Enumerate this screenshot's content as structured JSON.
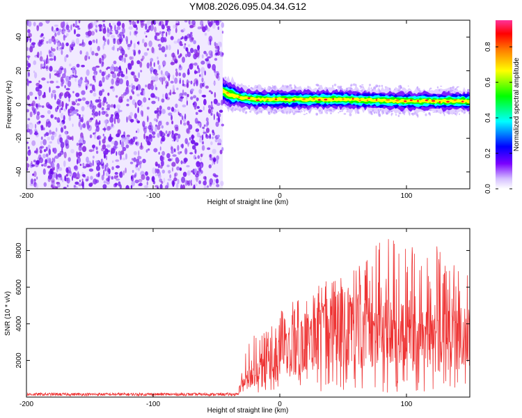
{
  "title": "YM08.2026.095.04.34.G12",
  "chart_data": [
    {
      "type": "heatmap",
      "name": "spectrogram",
      "xlabel": "Height of straight line (km)",
      "ylabel": "Frequency (Hz)",
      "xlim": [
        -200,
        150
      ],
      "ylim": [
        -50,
        50
      ],
      "x_ticks": [
        -200,
        -100,
        0,
        100
      ],
      "y_ticks": [
        -40,
        -20,
        0,
        20,
        40
      ],
      "noise_region_x": [
        -200,
        -45
      ],
      "signal_onset_x": -45,
      "signal_track": {
        "x": [
          -45,
          -40,
          -30,
          -20,
          0,
          50,
          100,
          150
        ],
        "freq": [
          8,
          6,
          4,
          3,
          3,
          3,
          2,
          2
        ]
      },
      "colorbar": {
        "label": "Normalized spectral amplitude",
        "range": [
          0,
          0.95
        ],
        "ticks": [
          0.0,
          0.2,
          0.4,
          0.6,
          0.8
        ],
        "tick_labels": [
          "0.0",
          "0.2",
          "0.4",
          "0.6",
          "0.8"
        ],
        "colors": [
          "#ffffff",
          "#b48cff",
          "#7a00ff",
          "#0000ff",
          "#00ffff",
          "#00ff00",
          "#ffff00",
          "#ff8000",
          "#ff0000",
          "#ff3399"
        ]
      }
    },
    {
      "type": "line",
      "name": "snr",
      "xlabel": "Height of straight line (km)",
      "ylabel": "SNR (10 * v/v)",
      "xlim": [
        -200,
        150
      ],
      "ylim": [
        0,
        9200
      ],
      "x_ticks": [
        -200,
        -100,
        0,
        100
      ],
      "y_ticks": [
        2000,
        4000,
        6000,
        8000
      ],
      "color": "#ee3333",
      "baseline_level": 150,
      "baseline_until_x": -32,
      "envelope": {
        "x": [
          -32,
          -25,
          -15,
          0,
          20,
          40,
          60,
          80,
          100,
          120,
          150
        ],
        "mean": [
          500,
          1300,
          2000,
          2600,
          3600,
          4300,
          4500,
          4300,
          4000,
          3900,
          3800
        ],
        "max": [
          900,
          3100,
          3700,
          4700,
          5700,
          6500,
          7000,
          8800,
          8300,
          8500,
          6800
        ]
      }
    }
  ]
}
